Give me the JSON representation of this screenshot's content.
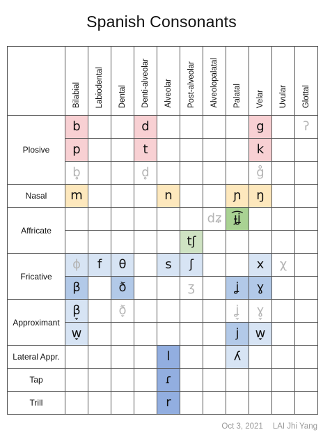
{
  "title": "Spanish Consonants",
  "colors": {
    "red": "#f8d0d3",
    "yellow": "#fde8bd",
    "green": "#cfe3c3",
    "green_dark": "#a9d293",
    "blue_light": "#d7e4f4",
    "blue": "#b2c9e8",
    "blue_dark": "#92aee0",
    "dim_text": "#b5b5b5"
  },
  "columns": [
    "Bilabial",
    "Labiodental",
    "Dental",
    "Denti-alveolar",
    "Alveolar",
    "Post-alveolar",
    "Alveolopalatal",
    "Palatal",
    "Velar",
    "Uvular",
    "Glottal"
  ],
  "manners": [
    {
      "label": "Plosive",
      "span": 3
    },
    {
      "label": "Nasal",
      "span": 1
    },
    {
      "label": "Affricate",
      "span": 2
    },
    {
      "label": "Fricative",
      "span": 2
    },
    {
      "label": "Approximant",
      "span": 2
    },
    {
      "label": "Lateral Appr.",
      "span": 1
    },
    {
      "label": "Tap",
      "span": 1
    },
    {
      "label": "Trill",
      "span": 1
    }
  ],
  "rows": [
    [
      {
        "t": "b",
        "bg": "red"
      },
      {},
      {},
      {
        "t": "d",
        "bg": "red"
      },
      {},
      {},
      {},
      {},
      {
        "t": "g",
        "bg": "red"
      },
      {},
      {
        "t": "ʔ",
        "dim": true
      }
    ],
    [
      {
        "t": "p",
        "bg": "red"
      },
      {},
      {},
      {
        "t": "t",
        "bg": "red"
      },
      {},
      {},
      {},
      {},
      {
        "t": "k",
        "bg": "red"
      },
      {},
      {}
    ],
    [
      {
        "t": "b̥",
        "dim": true
      },
      {},
      {},
      {
        "t": "d̥",
        "dim": true
      },
      {},
      {},
      {},
      {},
      {
        "t": "g̊",
        "dim": true
      },
      {},
      {}
    ],
    [
      {
        "t": "m",
        "bg": "yellow"
      },
      {},
      {},
      {},
      {
        "t": "n",
        "bg": "yellow"
      },
      {},
      {},
      {
        "t": "ɲ",
        "bg": "yellow"
      },
      {
        "t": "ŋ",
        "bg": "yellow"
      },
      {},
      {}
    ],
    [
      {},
      {},
      {},
      {},
      {},
      {},
      {
        "t": "dʑ",
        "dim": true
      },
      {
        "t": "ɟ͡ʝ",
        "bg": "green_dark"
      },
      {},
      {},
      {}
    ],
    [
      {},
      {},
      {},
      {},
      {},
      {
        "t": "tʃ",
        "bg": "green"
      },
      {},
      {},
      {},
      {},
      {}
    ],
    [
      {
        "t": "ɸ",
        "dim": true,
        "bg": "blue_light"
      },
      {
        "t": "f",
        "bg": "blue_light"
      },
      {
        "t": "θ",
        "bg": "blue_light"
      },
      {},
      {
        "t": "s",
        "bg": "blue_light"
      },
      {
        "t": "ʃ",
        "bg": "blue_light"
      },
      {},
      {},
      {
        "t": "x",
        "bg": "blue_light"
      },
      {
        "t": "χ",
        "dim": true
      },
      {}
    ],
    [
      {
        "t": "β",
        "bg": "blue"
      },
      {},
      {
        "t": "ð",
        "bg": "blue"
      },
      {},
      {},
      {
        "t": "ʒ",
        "dim": true
      },
      {},
      {
        "t": "ʝ",
        "bg": "blue"
      },
      {
        "t": "ɣ",
        "bg": "blue"
      },
      {},
      {}
    ],
    [
      {
        "t": "β̞",
        "bg": "blue_light"
      },
      {},
      {
        "t": "ð̞",
        "dim": true
      },
      {},
      {},
      {},
      {},
      {
        "t": "ʝ̞",
        "dim": true
      },
      {
        "t": "ɣ̞",
        "dim": true
      },
      {},
      {}
    ],
    [
      {
        "t": "w̞",
        "bg": "blue_light"
      },
      {},
      {},
      {},
      {},
      {},
      {},
      {
        "t": "j",
        "bg": "blue"
      },
      {
        "t": "w̞",
        "bg": "blue_light"
      },
      {},
      {}
    ],
    [
      {},
      {},
      {},
      {},
      {
        "t": "l",
        "bg": "blue_dark"
      },
      {},
      {},
      {
        "t": "ʎ",
        "bg": "blue_light"
      },
      {},
      {},
      {}
    ],
    [
      {},
      {},
      {},
      {},
      {
        "t": "ɾ",
        "bg": "blue_dark"
      },
      {},
      {},
      {},
      {},
      {},
      {}
    ],
    [
      {},
      {},
      {},
      {},
      {
        "t": "r",
        "bg": "blue_dark"
      },
      {},
      {},
      {},
      {},
      {},
      {}
    ]
  ],
  "footer": {
    "date": "Oct 3, 2021",
    "author": "LAI Jhi Yang"
  }
}
